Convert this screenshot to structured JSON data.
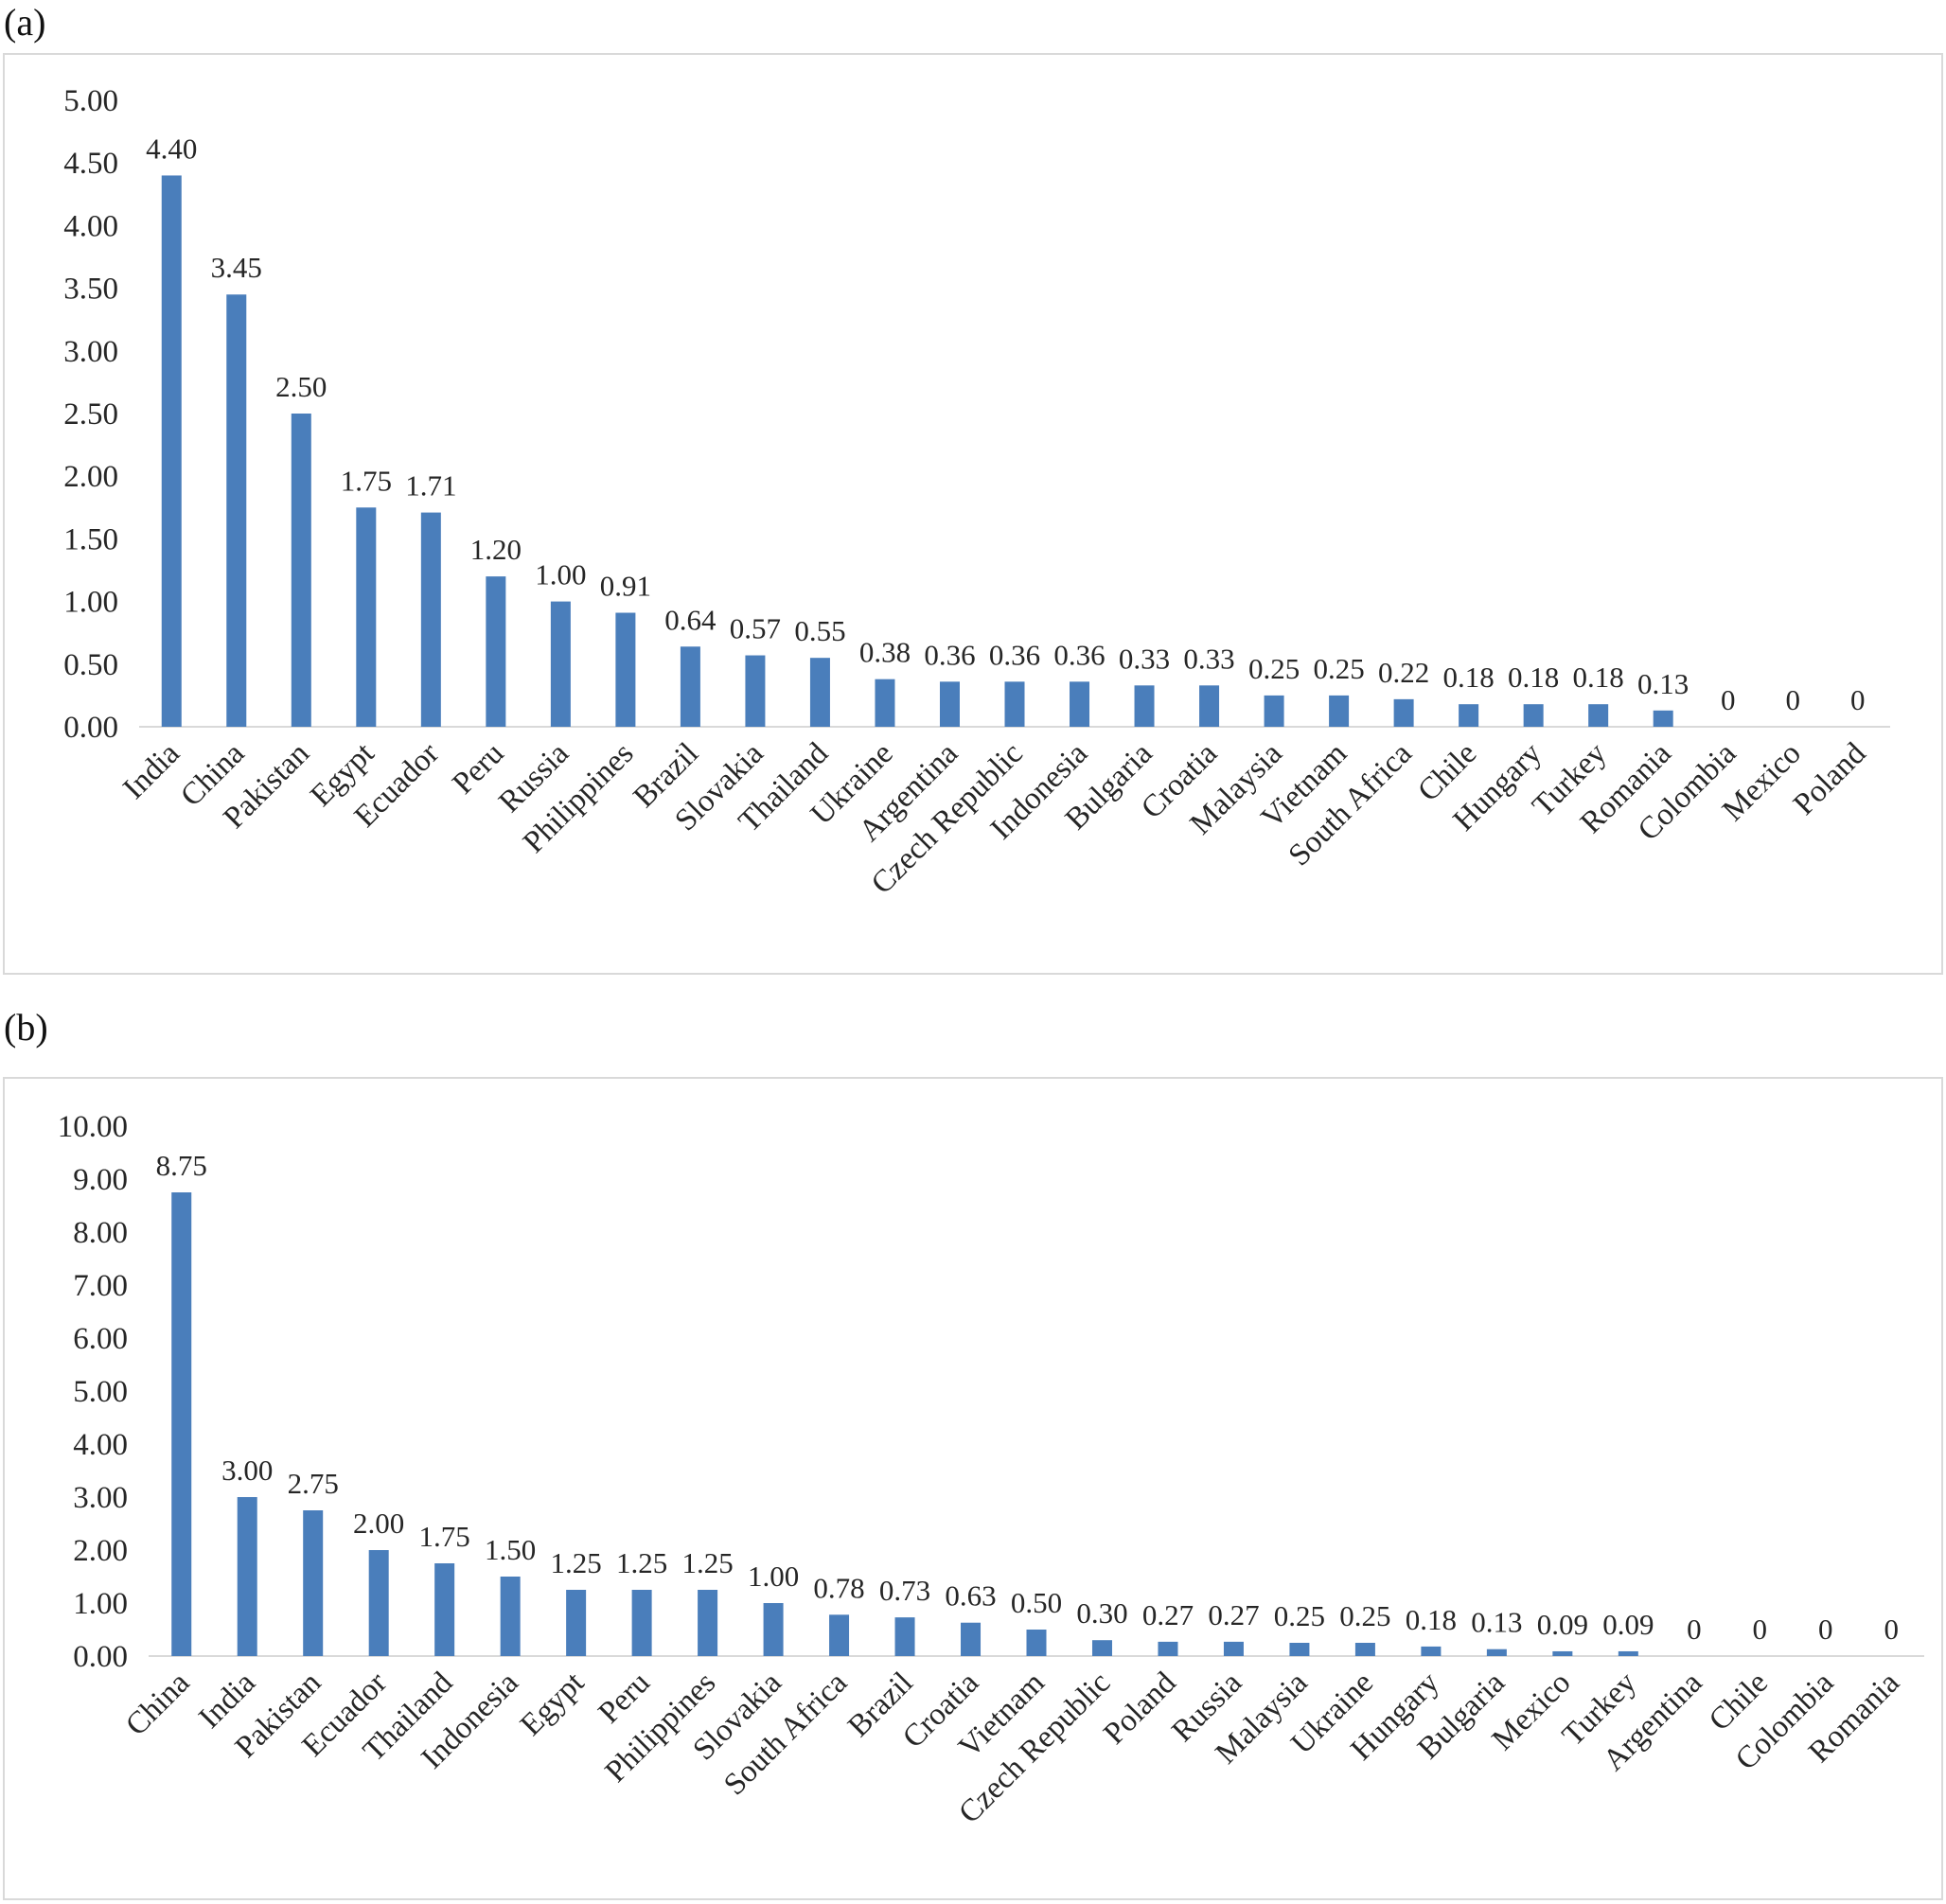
{
  "panels": [
    {
      "label": "(a)"
    },
    {
      "label": "(b)"
    }
  ],
  "colors": {
    "bar": "#4a7ebb",
    "axis": "#d9d9d9",
    "frame": "#d9d9d9",
    "text": "#262626"
  },
  "chart_data": [
    {
      "type": "bar",
      "title": "",
      "xlabel": "",
      "ylabel": "",
      "ylim": [
        0,
        5
      ],
      "ytick_step": 0.5,
      "ytick_labels": [
        "0.00",
        "0.50",
        "1.00",
        "1.50",
        "2.00",
        "2.50",
        "3.00",
        "3.50",
        "4.00",
        "4.50",
        "5.00"
      ],
      "grid": false,
      "categories": [
        "India",
        "China",
        "Pakistan",
        "Egypt",
        "Ecuador",
        "Peru",
        "Russia",
        "Philippines",
        "Brazil",
        "Slovakia",
        "Thailand",
        "Ukraine",
        "Argentina",
        "Czech Republic",
        "Indonesia",
        "Bulgaria",
        "Croatia",
        "Malaysia",
        "Vietnam",
        "South Africa",
        "Chile",
        "Hungary",
        "Turkey",
        "Romania",
        "Colombia",
        "Mexico",
        "Poland"
      ],
      "values": [
        4.4,
        3.45,
        2.5,
        1.75,
        1.71,
        1.2,
        1.0,
        0.91,
        0.64,
        0.57,
        0.55,
        0.38,
        0.36,
        0.36,
        0.36,
        0.33,
        0.33,
        0.25,
        0.25,
        0.22,
        0.18,
        0.18,
        0.18,
        0.13,
        0,
        0,
        0
      ],
      "data_labels": [
        "4.40",
        "3.45",
        "2.50",
        "1.75",
        "1.71",
        "1.20",
        "1.00",
        "0.91",
        "0.64",
        "0.57",
        "0.55",
        "0.38",
        "0.36",
        "0.36",
        "0.36",
        "0.33",
        "0.33",
        "0.25",
        "0.25",
        "0.22",
        "0.18",
        "0.18",
        "0.18",
        "0.13",
        "0",
        "0",
        "0"
      ]
    },
    {
      "type": "bar",
      "title": "",
      "xlabel": "",
      "ylabel": "",
      "ylim": [
        0,
        10
      ],
      "ytick_step": 1,
      "ytick_labels": [
        "0.00",
        "1.00",
        "2.00",
        "3.00",
        "4.00",
        "5.00",
        "6.00",
        "7.00",
        "8.00",
        "9.00",
        "10.00"
      ],
      "grid": false,
      "categories": [
        "China",
        "India",
        "Pakistan",
        "Ecuador",
        "Thailand",
        "Indonesia",
        "Egypt",
        "Peru",
        "Philippines",
        "Slovakia",
        "South Africa",
        "Brazil",
        "Croatia",
        "Vietnam",
        "Czech Republic",
        "Poland",
        "Russia",
        "Malaysia",
        "Ukraine",
        "Hungary",
        "Bulgaria",
        "Mexico",
        "Turkey",
        "Argentina",
        "Chile",
        "Colombia",
        "Romania"
      ],
      "values": [
        8.75,
        3.0,
        2.75,
        2.0,
        1.75,
        1.5,
        1.25,
        1.25,
        1.25,
        1.0,
        0.78,
        0.73,
        0.63,
        0.5,
        0.3,
        0.27,
        0.27,
        0.25,
        0.25,
        0.18,
        0.13,
        0.09,
        0.09,
        0,
        0,
        0,
        0
      ],
      "data_labels": [
        "8.75",
        "3.00",
        "2.75",
        "2.00",
        "1.75",
        "1.50",
        "1.25",
        "1.25",
        "1.25",
        "1.00",
        "0.78",
        "0.73",
        "0.63",
        "0.50",
        "0.30",
        "0.27",
        "0.27",
        "0.25",
        "0.25",
        "0.18",
        "0.13",
        "0.09",
        "0.09",
        "0",
        "0",
        "0",
        "0"
      ]
    }
  ]
}
